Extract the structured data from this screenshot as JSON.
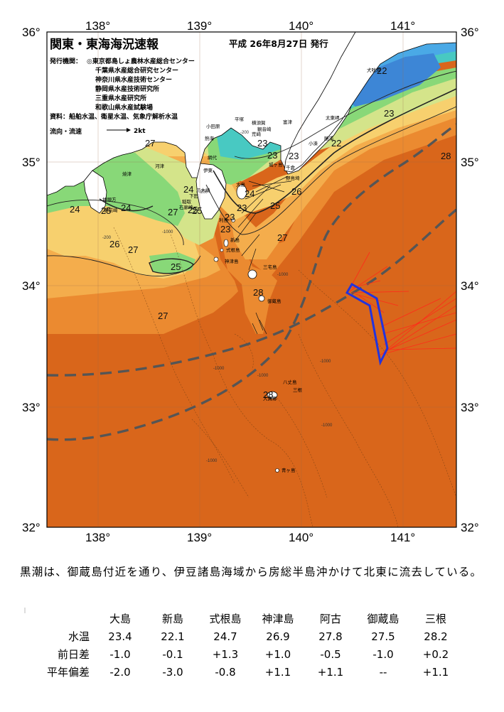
{
  "header": {
    "title": "関東・東海海況速報",
    "issue_date": "平成 26年8月27日 発行",
    "org_label": "発行機関：",
    "organizations": [
      "◎東京都島しょ農林水産総合センター",
      "千葉県水産総合研究センター",
      "神奈川県水産技術センター",
      "静岡県水産技術研究所",
      "三重県水産研究所",
      "和歌山県水産試験場"
    ],
    "sources": "資料：船舶水温、衛星水温、気象庁解析水温",
    "current_legend_label": "流向・流速",
    "current_legend_scale": "2kt"
  },
  "axes": {
    "lon_labels": [
      "138°",
      "139°",
      "140°",
      "141°"
    ],
    "lat_labels": [
      "36°",
      "35°",
      "34°",
      "33°",
      "32°"
    ]
  },
  "temperature_labels": [
    "22",
    "23",
    "23",
    "23",
    "23",
    "22",
    "27",
    "28",
    "24",
    "24",
    "24",
    "25",
    "27",
    "25",
    "23",
    "26",
    "25",
    "25",
    "24",
    "23",
    "23",
    "27",
    "26",
    "27",
    "25",
    "28",
    "27",
    "28"
  ],
  "place_names": [
    "犬吠埼",
    "太東岬",
    "勝浦",
    "小湊",
    "富津",
    "千倉",
    "野島埼",
    "平塚",
    "横須賀",
    "観音崎",
    "荒崎",
    "城ヶ島",
    "小田原",
    "熱海",
    "網代",
    "伊東",
    "下田",
    "爪木崎",
    "石廊崎",
    "稲取",
    "大島",
    "利島",
    "新島",
    "式根島",
    "神津島",
    "三宅島",
    "御蔵島",
    "八丈島",
    "三根",
    "大賀郷",
    "青ヶ島",
    "焼津",
    "御前崎",
    "地頭方",
    "河津"
  ],
  "depth_labels": [
    "-200",
    "-1000",
    "-200",
    "-1000",
    "-1000",
    "-1000",
    "-1000",
    "-1000",
    "-200",
    "-1000"
  ],
  "summary": "黒潮は、御蔵島付近を通り、伊豆諸島海域から房総半島沖かけて北東に流去している。",
  "table": {
    "stations": [
      "大島",
      "新島",
      "式根島",
      "神津島",
      "阿古",
      "御蔵島",
      "三根"
    ],
    "rows": [
      {
        "label": "水温",
        "values": [
          "23.4",
          "22.1",
          "24.7",
          "26.9",
          "27.8",
          "27.5",
          "28.2"
        ]
      },
      {
        "label": "前日差",
        "values": [
          "-1.0",
          "-0.1",
          "+1.3",
          "+1.0",
          "-0.5",
          "-1.0",
          "+0.2"
        ]
      },
      {
        "label": "平年偏差",
        "values": [
          "-2.0",
          "-3.0",
          "-0.8",
          "+1.1",
          "+1.1",
          "--",
          "+1.1"
        ]
      }
    ]
  },
  "colors": {
    "warm_28": "#d9661b",
    "warm_27": "#eb8a30",
    "warm_26": "#f4ad4c",
    "warm_25": "#f7d06e",
    "temp_24": "#d4e48a",
    "temp_23": "#88d878",
    "temp_22": "#48c9c2",
    "cold_21": "#4aa9e6",
    "land": "#ffffff",
    "kuroshio_axis": "#555555",
    "track_red": "#ff2a1a",
    "track_blue": "#2233dd"
  }
}
